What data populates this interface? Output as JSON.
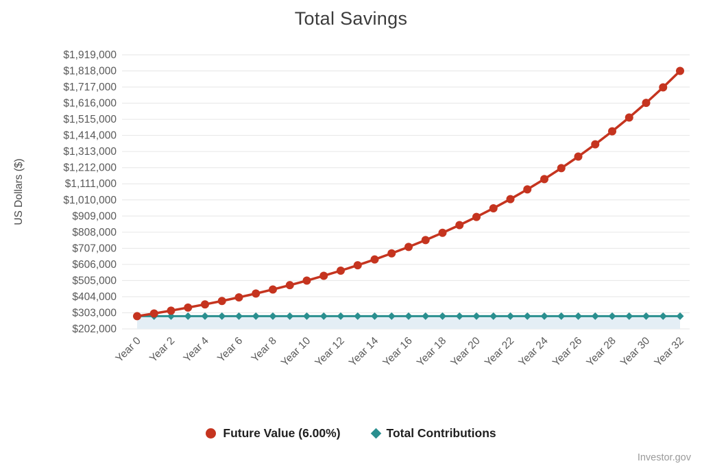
{
  "page": {
    "credits_label": "Investor.gov"
  },
  "chart_data": {
    "type": "line",
    "title": "Total Savings",
    "xlabel": "",
    "ylabel": "US Dollars ($)",
    "grid": "horizontal",
    "grid_color": "#e6e6e6",
    "legend_position": "bottom",
    "ylim": [
      202000,
      1919000
    ],
    "y_ticks": [
      202000,
      303000,
      404000,
      505000,
      606000,
      707000,
      808000,
      909000,
      1010000,
      1111000,
      1212000,
      1313000,
      1414000,
      1515000,
      1616000,
      1717000,
      1818000,
      1919000
    ],
    "years": [
      0,
      1,
      2,
      3,
      4,
      5,
      6,
      7,
      8,
      9,
      10,
      11,
      12,
      13,
      14,
      15,
      16,
      17,
      18,
      19,
      20,
      21,
      22,
      23,
      24,
      25,
      26,
      27,
      28,
      29,
      30,
      31,
      32
    ],
    "x_tick_years": [
      0,
      2,
      4,
      6,
      8,
      10,
      12,
      14,
      16,
      18,
      20,
      22,
      24,
      26,
      28,
      30,
      32
    ],
    "x_tick_labels": [
      "Year 0",
      "Year 2",
      "Year 4",
      "Year 6",
      "Year 8",
      "Year 10",
      "Year 12",
      "Year 14",
      "Year 16",
      "Year 18",
      "Year 20",
      "Year 22",
      "Year 24",
      "Year 26",
      "Year 28",
      "Year 30",
      "Year 32"
    ],
    "series": [
      {
        "name": "Future Value (6.00%)",
        "color": "#c5341f",
        "marker": "circle",
        "values": [
          281700,
          298602,
          316518,
          335509,
          355640,
          376978,
          399597,
          423573,
          448987,
          475926,
          504482,
          534751,
          566836,
          600902,
          636897,
          675110,
          715617,
          758554,
          804067,
          852311,
          903450,
          957657,
          1015116,
          1076023,
          1140585,
          1209020,
          1281561,
          1358455,
          1439962,
          1526360,
          1617942,
          1715018,
          1817919
        ]
      },
      {
        "name": "Total Contributions",
        "color": "#2a8f8f",
        "marker": "diamond",
        "area_fill": "#e4eef5",
        "values": [
          281700,
          281700,
          281700,
          281700,
          281700,
          281700,
          281700,
          281700,
          281700,
          281700,
          281700,
          281700,
          281700,
          281700,
          281700,
          281700,
          281700,
          281700,
          281700,
          281700,
          281700,
          281700,
          281700,
          281700,
          281700,
          281700,
          281700,
          281700,
          281700,
          281700,
          281700,
          281700,
          281700
        ]
      }
    ]
  }
}
